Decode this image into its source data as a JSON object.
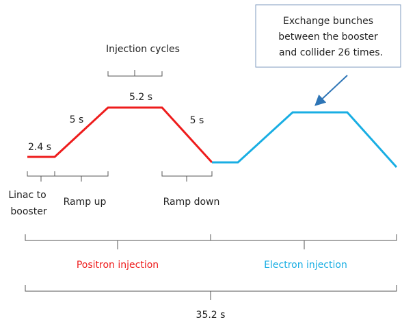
{
  "labels": {
    "injection_cycles": "Injection cycles",
    "linac_time": "2.4 s",
    "ramp_up_time": "5 s",
    "flat_time": "5.2 s",
    "ramp_down_time": "5 s",
    "linac_line1": "Linac to",
    "linac_line2": "booster",
    "ramp_up": "Ramp up",
    "ramp_down": "Ramp down",
    "positron": "Positron injection",
    "electron": "Electron injection",
    "total": "35.2 s"
  },
  "callout": {
    "lines": [
      "Exchange bunches",
      "between the booster",
      "and collider 26 times."
    ]
  }
}
